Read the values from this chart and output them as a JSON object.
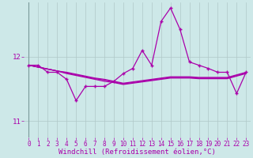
{
  "x": [
    0,
    1,
    2,
    3,
    4,
    5,
    6,
    7,
    8,
    9,
    10,
    11,
    12,
    13,
    14,
    15,
    16,
    17,
    18,
    19,
    20,
    21,
    22,
    23
  ],
  "main_line": [
    11.87,
    11.87,
    11.76,
    11.76,
    11.65,
    11.32,
    11.54,
    11.54,
    11.54,
    11.62,
    11.74,
    11.82,
    12.1,
    11.87,
    12.55,
    12.76,
    12.43,
    11.92,
    11.87,
    11.82,
    11.76,
    11.76,
    11.43,
    11.76
  ],
  "reg_line1": [
    11.87,
    11.84,
    11.81,
    11.78,
    11.76,
    11.73,
    11.7,
    11.67,
    11.65,
    11.62,
    11.59,
    11.61,
    11.63,
    11.65,
    11.67,
    11.69,
    11.69,
    11.69,
    11.68,
    11.68,
    11.68,
    11.68,
    11.72,
    11.76
  ],
  "reg_line2": [
    11.87,
    11.84,
    11.81,
    11.78,
    11.75,
    11.72,
    11.69,
    11.66,
    11.64,
    11.61,
    11.58,
    11.6,
    11.62,
    11.64,
    11.66,
    11.68,
    11.68,
    11.68,
    11.67,
    11.67,
    11.67,
    11.67,
    11.71,
    11.75
  ],
  "reg_line3": [
    11.87,
    11.84,
    11.81,
    11.78,
    11.74,
    11.71,
    11.68,
    11.65,
    11.62,
    11.6,
    11.57,
    11.59,
    11.61,
    11.63,
    11.65,
    11.67,
    11.67,
    11.67,
    11.66,
    11.66,
    11.66,
    11.66,
    11.7,
    11.74
  ],
  "bg_color": "#cde8e8",
  "grid_color": "#b0c8c8",
  "line_color": "#aa00aa",
  "yticks": [
    11,
    12
  ],
  "xticks": [
    0,
    1,
    2,
    3,
    4,
    5,
    6,
    7,
    8,
    9,
    10,
    11,
    12,
    13,
    14,
    15,
    16,
    17,
    18,
    19,
    20,
    21,
    22,
    23
  ],
  "xlabel": "Windchill (Refroidissement éolien,°C)",
  "ylim": [
    10.75,
    12.85
  ],
  "xlim": [
    -0.5,
    23.5
  ],
  "tick_fontsize": 5.5,
  "ylabel_fontsize": 6.5
}
